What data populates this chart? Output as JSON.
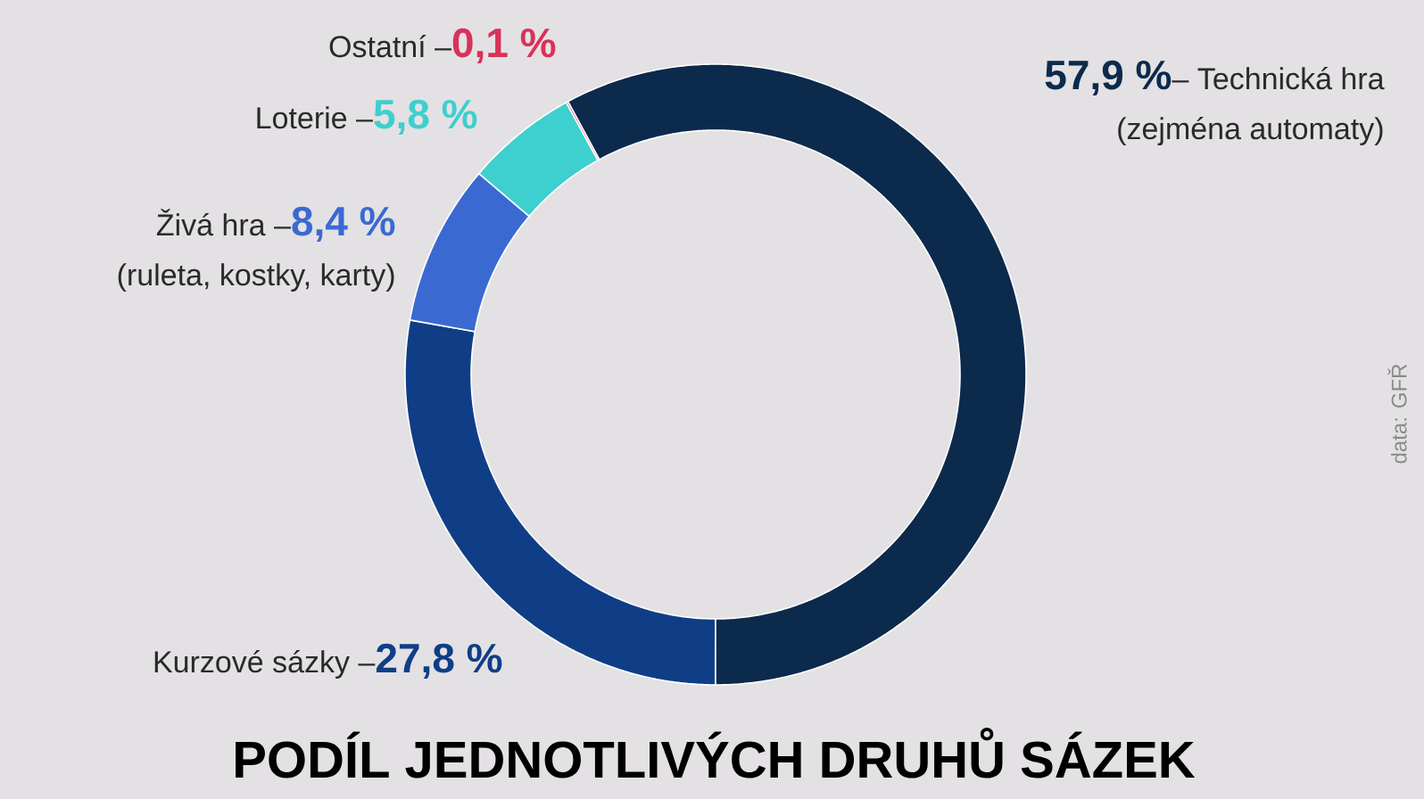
{
  "chart_data": {
    "type": "donut",
    "title": "PODÍL JEDNOTLIVÝCH DRUHŮ SÁZEK",
    "categories": [
      "– Technická hra",
      "Kurzové sázky –",
      "Živá hra –",
      "Loterie –",
      "Ostatní –"
    ],
    "values": [
      57.9,
      27.8,
      8.4,
      5.8,
      0.1
    ],
    "value_labels": [
      "57,9 %",
      "27,8 %",
      "8,4 %",
      "5,8 %",
      "0,1 %"
    ],
    "colors": [
      "#0c2a4c",
      "#0f3e87",
      "#3a6ad1",
      "#3ecfcf",
      "#d8325a"
    ],
    "annotations": [
      "(zejména automaty)",
      "(ruleta, kostky, karty)",
      "data: GFŘ"
    ]
  }
}
